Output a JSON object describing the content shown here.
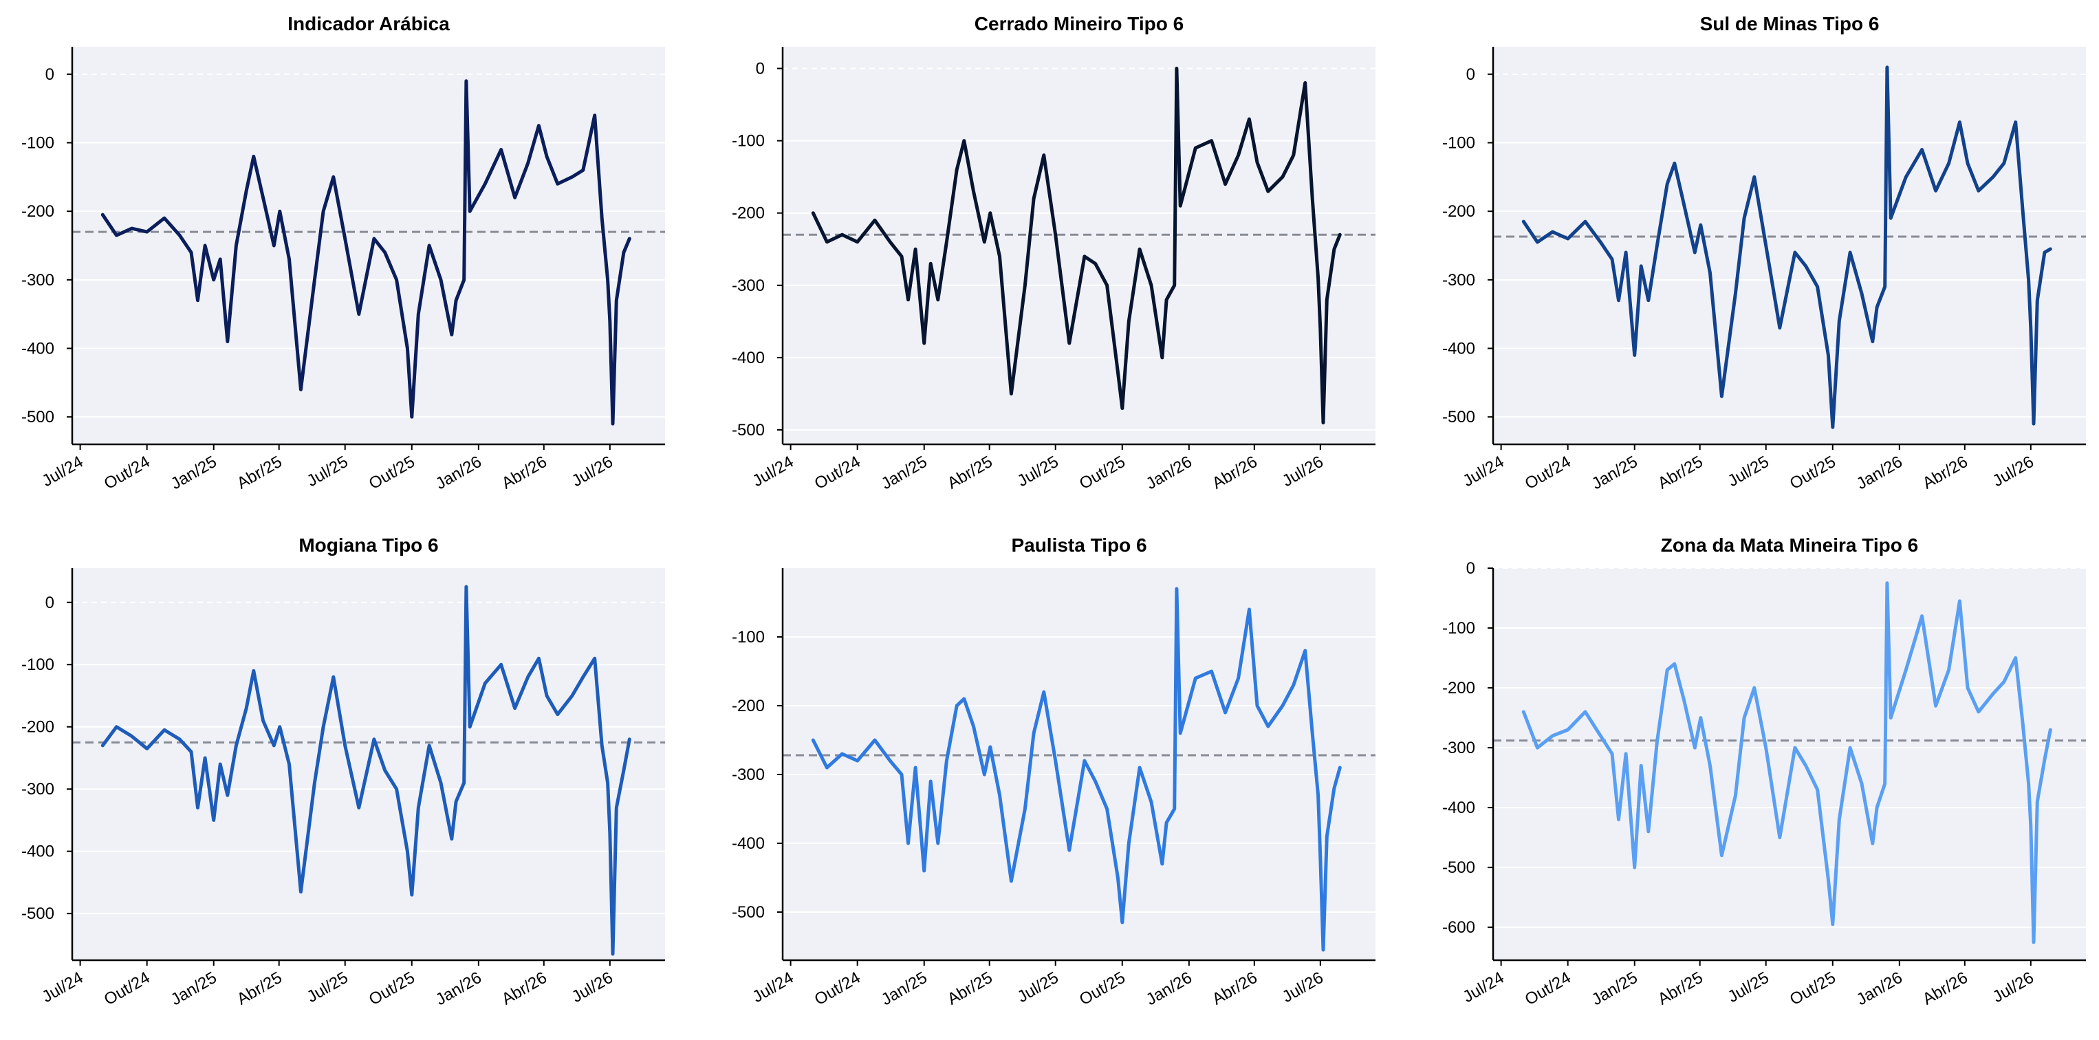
{
  "figure": {
    "background": "#ffffff",
    "plot_background": "#eff1f6",
    "grid": true,
    "grid_color": "#ffffff",
    "zero_line_color": "#ffffff",
    "mean_line_color": "#888c96",
    "x_tick_labels": [
      "Jul/24",
      "Out/24",
      "Jan/25",
      "Abr/25",
      "Jul/25",
      "Out/25",
      "Jan/26",
      "Abr/26",
      "Jul/26"
    ],
    "x_ticks": [
      "2024-07-01",
      "2024-10-01",
      "2025-01-01",
      "2025-04-01",
      "2025-07-01",
      "2025-10-01",
      "2026-01-01",
      "2026-04-01",
      "2026-07-01"
    ],
    "x_range": [
      "2024-06-20",
      "2026-09-15"
    ]
  },
  "chart_data": [
    {
      "type": "line",
      "title": "Indicador Arábica",
      "color": "#0b1e5b",
      "ylim": [
        -540,
        40
      ],
      "yticks": [
        0,
        -100,
        -200,
        -300,
        -400,
        -500
      ],
      "mean": -230,
      "series": [
        {
          "x": [
            "2024-08-01",
            "2024-08-20",
            "2024-09-10",
            "2024-10-01",
            "2024-10-25",
            "2024-11-15",
            "2024-12-01",
            "2024-12-10",
            "2024-12-20",
            "2025-01-01",
            "2025-01-10",
            "2025-01-20",
            "2025-02-01",
            "2025-02-15",
            "2025-02-25",
            "2025-03-10",
            "2025-03-25",
            "2025-04-02",
            "2025-04-15",
            "2025-05-01",
            "2025-05-20",
            "2025-06-01",
            "2025-06-15",
            "2025-07-01",
            "2025-07-20",
            "2025-08-10",
            "2025-08-25",
            "2025-09-10",
            "2025-09-25",
            "2025-10-01",
            "2025-10-10",
            "2025-10-25",
            "2025-11-10",
            "2025-11-25",
            "2025-12-01",
            "2025-12-12",
            "2025-12-15",
            "2025-12-20",
            "2026-01-10",
            "2026-02-01",
            "2026-02-20",
            "2026-03-10",
            "2026-03-25",
            "2026-04-05",
            "2026-04-20",
            "2026-05-10",
            "2026-05-25",
            "2026-06-10",
            "2026-06-20",
            "2026-06-28",
            "2026-07-01",
            "2026-07-05",
            "2026-07-10",
            "2026-07-20",
            "2026-07-28"
          ],
          "y": [
            -205,
            -235,
            -225,
            -230,
            -210,
            -235,
            -260,
            -330,
            -250,
            -300,
            -270,
            -390,
            -250,
            -170,
            -120,
            -180,
            -250,
            -200,
            -270,
            -460,
            -300,
            -200,
            -150,
            -240,
            -350,
            -240,
            -260,
            -300,
            -400,
            -500,
            -350,
            -250,
            -300,
            -380,
            -330,
            -300,
            -10,
            -200,
            -160,
            -110,
            -180,
            -130,
            -75,
            -120,
            -160,
            -150,
            -140,
            -60,
            -210,
            -300,
            -360,
            -510,
            -330,
            -260,
            -240
          ]
        }
      ]
    },
    {
      "type": "line",
      "title": "Cerrado Mineiro Tipo 6",
      "color": "#071530",
      "ylim": [
        -520,
        30
      ],
      "yticks": [
        0,
        -100,
        -200,
        -300,
        -400,
        -500
      ],
      "mean": -230,
      "series": [
        {
          "x": [
            "2024-08-01",
            "2024-08-20",
            "2024-09-10",
            "2024-10-01",
            "2024-10-25",
            "2024-11-15",
            "2024-12-01",
            "2024-12-10",
            "2024-12-20",
            "2025-01-01",
            "2025-01-10",
            "2025-01-20",
            "2025-02-01",
            "2025-02-15",
            "2025-02-25",
            "2025-03-10",
            "2025-03-25",
            "2025-04-02",
            "2025-04-15",
            "2025-05-01",
            "2025-05-20",
            "2025-06-01",
            "2025-06-15",
            "2025-07-01",
            "2025-07-20",
            "2025-08-10",
            "2025-08-25",
            "2025-09-10",
            "2025-09-25",
            "2025-10-01",
            "2025-10-10",
            "2025-10-25",
            "2025-11-10",
            "2025-11-25",
            "2025-12-01",
            "2025-12-12",
            "2025-12-15",
            "2025-12-20",
            "2026-01-10",
            "2026-02-01",
            "2026-02-20",
            "2026-03-10",
            "2026-03-25",
            "2026-04-05",
            "2026-04-20",
            "2026-05-10",
            "2026-05-25",
            "2026-06-10",
            "2026-06-20",
            "2026-06-28",
            "2026-07-01",
            "2026-07-05",
            "2026-07-10",
            "2026-07-20",
            "2026-07-28"
          ],
          "y": [
            -200,
            -240,
            -230,
            -240,
            -210,
            -240,
            -260,
            -320,
            -250,
            -380,
            -270,
            -320,
            -240,
            -140,
            -100,
            -170,
            -240,
            -200,
            -260,
            -450,
            -300,
            -180,
            -120,
            -230,
            -380,
            -260,
            -270,
            -300,
            -420,
            -470,
            -350,
            -250,
            -300,
            -400,
            -320,
            -300,
            0,
            -190,
            -110,
            -100,
            -160,
            -120,
            -70,
            -130,
            -170,
            -150,
            -120,
            -20,
            -180,
            -290,
            -360,
            -490,
            -320,
            -250,
            -230
          ]
        }
      ]
    },
    {
      "type": "line",
      "title": "Sul de Minas Tipo 6",
      "color": "#13428d",
      "ylim": [
        -540,
        40
      ],
      "yticks": [
        0,
        -100,
        -200,
        -300,
        -400,
        -500
      ],
      "mean": -237,
      "series": [
        {
          "x": [
            "2024-08-01",
            "2024-08-20",
            "2024-09-10",
            "2024-10-01",
            "2024-10-25",
            "2024-11-15",
            "2024-12-01",
            "2024-12-10",
            "2024-12-20",
            "2025-01-01",
            "2025-01-10",
            "2025-01-20",
            "2025-02-01",
            "2025-02-15",
            "2025-02-25",
            "2025-03-10",
            "2025-03-25",
            "2025-04-02",
            "2025-04-15",
            "2025-05-01",
            "2025-05-20",
            "2025-06-01",
            "2025-06-15",
            "2025-07-01",
            "2025-07-20",
            "2025-08-10",
            "2025-08-25",
            "2025-09-10",
            "2025-09-25",
            "2025-10-01",
            "2025-10-10",
            "2025-10-25",
            "2025-11-10",
            "2025-11-25",
            "2025-12-01",
            "2025-12-12",
            "2025-12-15",
            "2025-12-20",
            "2026-01-10",
            "2026-02-01",
            "2026-02-20",
            "2026-03-10",
            "2026-03-25",
            "2026-04-05",
            "2026-04-20",
            "2026-05-10",
            "2026-05-25",
            "2026-06-10",
            "2026-06-20",
            "2026-06-28",
            "2026-07-01",
            "2026-07-05",
            "2026-07-10",
            "2026-07-20",
            "2026-07-28"
          ],
          "y": [
            -215,
            -245,
            -230,
            -240,
            -215,
            -245,
            -270,
            -330,
            -260,
            -410,
            -280,
            -330,
            -250,
            -160,
            -130,
            -190,
            -260,
            -220,
            -290,
            -470,
            -320,
            -210,
            -150,
            -250,
            -370,
            -260,
            -280,
            -310,
            -410,
            -515,
            -360,
            -260,
            -320,
            -390,
            -340,
            -310,
            10,
            -210,
            -150,
            -110,
            -170,
            -130,
            -70,
            -130,
            -170,
            -150,
            -130,
            -70,
            -200,
            -300,
            -370,
            -510,
            -330,
            -260,
            -255
          ]
        }
      ]
    },
    {
      "type": "line",
      "title": "Mogiana Tipo 6",
      "color": "#1e5cba",
      "ylim": [
        -575,
        55
      ],
      "yticks": [
        0,
        -100,
        -200,
        -300,
        -400,
        -500
      ],
      "mean": -225,
      "series": [
        {
          "x": [
            "2024-08-01",
            "2024-08-20",
            "2024-09-10",
            "2024-10-01",
            "2024-10-25",
            "2024-11-15",
            "2024-12-01",
            "2024-12-10",
            "2024-12-20",
            "2025-01-01",
            "2025-01-10",
            "2025-01-20",
            "2025-02-01",
            "2025-02-15",
            "2025-02-25",
            "2025-03-10",
            "2025-03-25",
            "2025-04-02",
            "2025-04-15",
            "2025-05-01",
            "2025-05-20",
            "2025-06-01",
            "2025-06-15",
            "2025-07-01",
            "2025-07-20",
            "2025-08-10",
            "2025-08-25",
            "2025-09-10",
            "2025-09-25",
            "2025-10-01",
            "2025-10-10",
            "2025-10-25",
            "2025-11-10",
            "2025-11-25",
            "2025-12-01",
            "2025-12-12",
            "2025-12-15",
            "2025-12-20",
            "2026-01-10",
            "2026-02-01",
            "2026-02-20",
            "2026-03-10",
            "2026-03-25",
            "2026-04-05",
            "2026-04-20",
            "2026-05-10",
            "2026-05-25",
            "2026-06-10",
            "2026-06-20",
            "2026-06-28",
            "2026-07-01",
            "2026-07-05",
            "2026-07-10",
            "2026-07-20",
            "2026-07-28"
          ],
          "y": [
            -230,
            -200,
            -215,
            -235,
            -205,
            -220,
            -240,
            -330,
            -250,
            -350,
            -260,
            -310,
            -230,
            -170,
            -110,
            -190,
            -230,
            -200,
            -260,
            -465,
            -290,
            -200,
            -120,
            -230,
            -330,
            -220,
            -270,
            -300,
            -400,
            -470,
            -330,
            -230,
            -290,
            -380,
            -320,
            -290,
            25,
            -200,
            -130,
            -100,
            -170,
            -120,
            -90,
            -150,
            -180,
            -150,
            -120,
            -90,
            -230,
            -290,
            -370,
            -565,
            -330,
            -270,
            -220
          ]
        }
      ]
    },
    {
      "type": "line",
      "title": "Paulista Tipo 6",
      "color": "#2f7ae0",
      "ylim": [
        -570,
        0
      ],
      "yticks": [
        -100,
        -200,
        -300,
        -400,
        -500
      ],
      "mean": -272,
      "series": [
        {
          "x": [
            "2024-08-01",
            "2024-08-20",
            "2024-09-10",
            "2024-10-01",
            "2024-10-25",
            "2024-11-15",
            "2024-12-01",
            "2024-12-10",
            "2024-12-20",
            "2025-01-01",
            "2025-01-10",
            "2025-01-20",
            "2025-02-01",
            "2025-02-15",
            "2025-02-25",
            "2025-03-10",
            "2025-03-25",
            "2025-04-02",
            "2025-04-15",
            "2025-05-01",
            "2025-05-20",
            "2025-06-01",
            "2025-06-15",
            "2025-07-01",
            "2025-07-20",
            "2025-08-10",
            "2025-08-25",
            "2025-09-10",
            "2025-09-25",
            "2025-10-01",
            "2025-10-10",
            "2025-10-25",
            "2025-11-10",
            "2025-11-25",
            "2025-12-01",
            "2025-12-12",
            "2025-12-15",
            "2025-12-20",
            "2026-01-10",
            "2026-02-01",
            "2026-02-20",
            "2026-03-10",
            "2026-03-25",
            "2026-04-05",
            "2026-04-20",
            "2026-05-10",
            "2026-05-25",
            "2026-06-10",
            "2026-06-20",
            "2026-06-28",
            "2026-07-01",
            "2026-07-05",
            "2026-07-10",
            "2026-07-20",
            "2026-07-28"
          ],
          "y": [
            -250,
            -290,
            -270,
            -280,
            -250,
            -280,
            -300,
            -400,
            -290,
            -440,
            -310,
            -400,
            -280,
            -200,
            -190,
            -230,
            -300,
            -260,
            -330,
            -455,
            -350,
            -240,
            -180,
            -280,
            -410,
            -280,
            -310,
            -350,
            -450,
            -515,
            -400,
            -290,
            -340,
            -430,
            -370,
            -350,
            -30,
            -240,
            -160,
            -150,
            -210,
            -160,
            -60,
            -200,
            -230,
            -200,
            -170,
            -120,
            -240,
            -330,
            -420,
            -555,
            -390,
            -320,
            -290
          ]
        }
      ]
    },
    {
      "type": "line",
      "title": "Zona da Mata Mineira Tipo 6",
      "color": "#5a9ff3",
      "ylim": [
        -655,
        0
      ],
      "yticks": [
        0,
        -100,
        -200,
        -300,
        -400,
        -500,
        -600
      ],
      "mean": -288,
      "series": [
        {
          "x": [
            "2024-08-01",
            "2024-08-20",
            "2024-09-10",
            "2024-10-01",
            "2024-10-25",
            "2024-11-15",
            "2024-12-01",
            "2024-12-10",
            "2024-12-20",
            "2025-01-01",
            "2025-01-10",
            "2025-01-20",
            "2025-02-01",
            "2025-02-15",
            "2025-02-25",
            "2025-03-10",
            "2025-03-25",
            "2025-04-02",
            "2025-04-15",
            "2025-05-01",
            "2025-05-20",
            "2025-06-01",
            "2025-06-15",
            "2025-07-01",
            "2025-07-20",
            "2025-08-10",
            "2025-08-25",
            "2025-09-10",
            "2025-09-25",
            "2025-10-01",
            "2025-10-10",
            "2025-10-25",
            "2025-11-10",
            "2025-11-25",
            "2025-12-01",
            "2025-12-12",
            "2025-12-15",
            "2025-12-20",
            "2026-01-10",
            "2026-02-01",
            "2026-02-20",
            "2026-03-10",
            "2026-03-25",
            "2026-04-05",
            "2026-04-20",
            "2026-05-10",
            "2026-05-25",
            "2026-06-10",
            "2026-06-20",
            "2026-06-28",
            "2026-07-01",
            "2026-07-05",
            "2026-07-10",
            "2026-07-20",
            "2026-07-28"
          ],
          "y": [
            -240,
            -300,
            -280,
            -270,
            -240,
            -280,
            -310,
            -420,
            -310,
            -500,
            -330,
            -440,
            -290,
            -170,
            -160,
            -220,
            -300,
            -250,
            -330,
            -480,
            -380,
            -250,
            -200,
            -300,
            -450,
            -300,
            -330,
            -370,
            -520,
            -595,
            -420,
            -300,
            -360,
            -460,
            -400,
            -360,
            -25,
            -250,
            -170,
            -80,
            -230,
            -170,
            -55,
            -200,
            -240,
            -210,
            -190,
            -150,
            -260,
            -360,
            -430,
            -625,
            -390,
            -320,
            -270
          ]
        }
      ]
    }
  ]
}
